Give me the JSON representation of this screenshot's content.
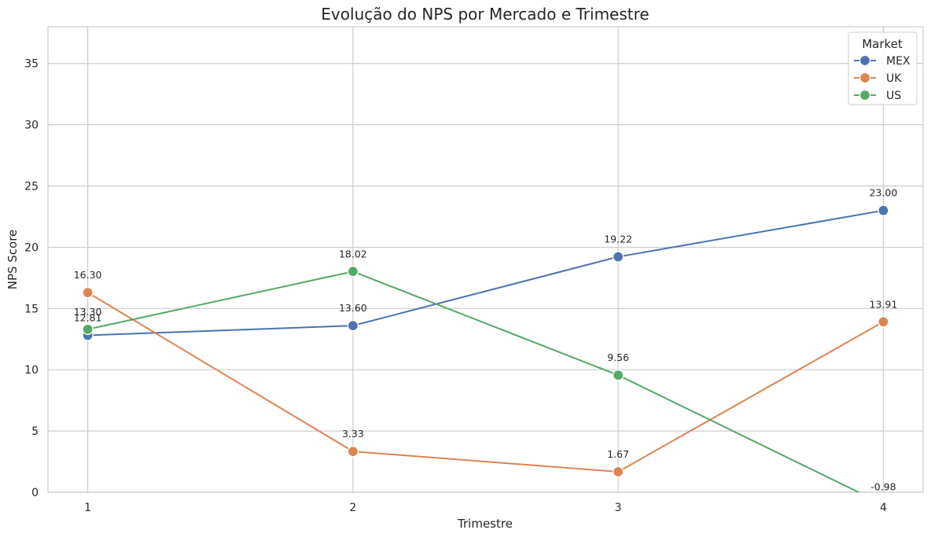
{
  "chart_data": {
    "type": "line",
    "title": "Evolução do NPS por Mercado e Trimestre",
    "xlabel": "Trimestre",
    "ylabel": "NPS Score",
    "x": [
      1,
      2,
      3,
      4
    ],
    "xticks": [
      "1",
      "2",
      "3",
      "4"
    ],
    "xlim": [
      0.85,
      4.15
    ],
    "ylim": [
      0,
      38
    ],
    "yticks": [
      "0",
      "5",
      "10",
      "15",
      "20",
      "25",
      "30",
      "35"
    ],
    "grid": true,
    "legend": {
      "title": "Market",
      "placement": "top-right"
    },
    "series": [
      {
        "name": "MEX",
        "color": "#4c72b0",
        "values": [
          12.81,
          13.6,
          19.22,
          23.0
        ],
        "labels": [
          "12.81",
          "13.60",
          "19.22",
          "23.00"
        ]
      },
      {
        "name": "UK",
        "color": "#dd8452",
        "values": [
          16.3,
          3.33,
          1.67,
          13.91
        ],
        "labels": [
          "16.30",
          "3.33",
          "1.67",
          "13.91"
        ]
      },
      {
        "name": "US",
        "color": "#55a868",
        "values": [
          13.3,
          18.02,
          9.56,
          -0.98
        ],
        "labels": [
          "13.30",
          "18.02",
          "9.56",
          "-0.98"
        ]
      }
    ]
  }
}
